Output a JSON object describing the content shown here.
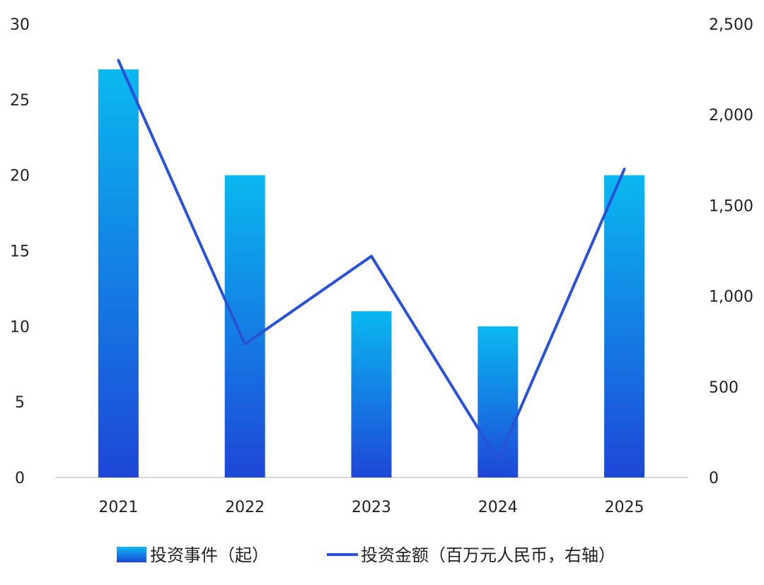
{
  "chart_data": {
    "type": "bar",
    "categories": [
      "2021",
      "2022",
      "2023",
      "2024",
      "2025"
    ],
    "series": [
      {
        "name": "投资事件（起）",
        "type": "bar",
        "axis": "left",
        "values": [
          27,
          20,
          11,
          10,
          20
        ],
        "color_top": "#0ab8f0",
        "color_bottom": "#1e46d8"
      },
      {
        "name": "投资金额（百万元人民币，右轴）",
        "type": "line",
        "axis": "right",
        "values": [
          2300,
          735,
          1220,
          95,
          1700
        ],
        "color": "#2a52d6"
      }
    ],
    "y_left": {
      "min": 0,
      "max": 30,
      "ticks": [
        "0",
        "5",
        "10",
        "15",
        "20",
        "25",
        "30"
      ]
    },
    "y_right": {
      "min": 0,
      "max": 2500,
      "ticks": [
        "0",
        "500",
        "1,000",
        "1,500",
        "2,000",
        "2,500"
      ]
    },
    "grid": false,
    "legend_position": "bottom"
  }
}
